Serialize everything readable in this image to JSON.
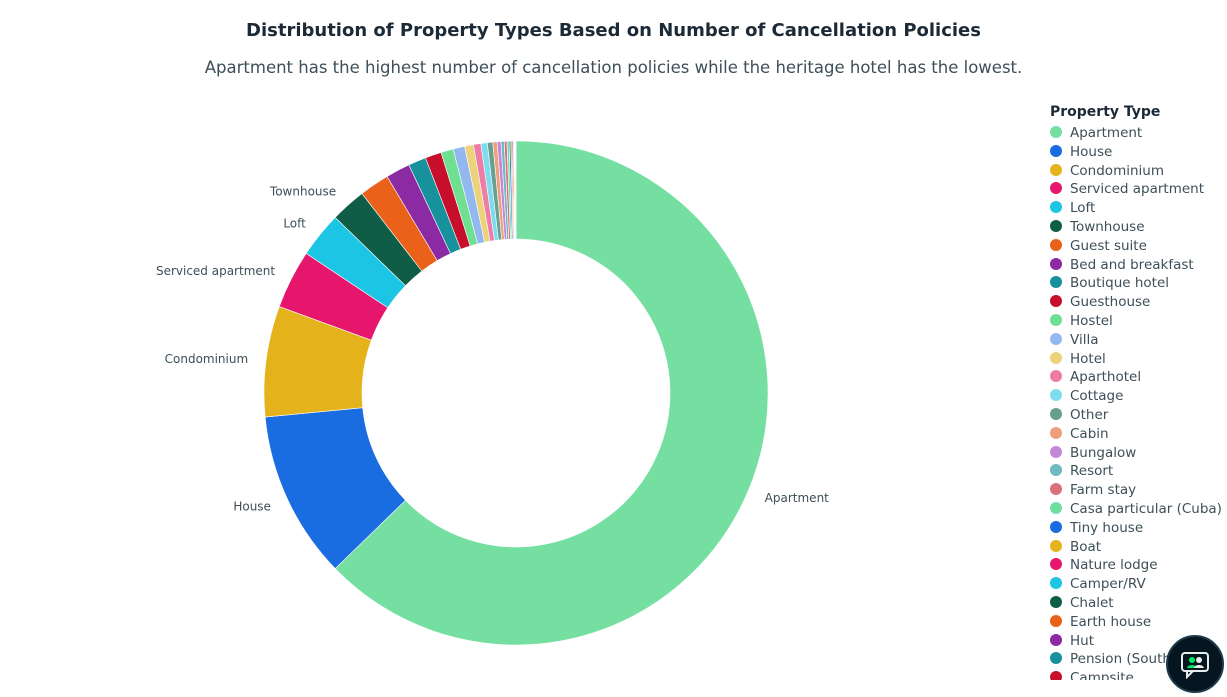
{
  "chart_data": {
    "type": "pie",
    "title": "Distribution of Property Types Based on Number of Cancellation Policies",
    "subtitle": "Apartment has the highest  number of cancellation policies while the heritage hotel has the lowest.",
    "legend_title": "Property Type",
    "legend_position": "right",
    "slice_order": "clockwise from top",
    "categories": [
      "Apartment",
      "House",
      "Condominium",
      "Serviced apartment",
      "Loft",
      "Townhouse",
      "Guest suite",
      "Bed and breakfast",
      "Boutique hotel",
      "Guesthouse",
      "Hostel",
      "Villa",
      "Hotel",
      "Aparthotel",
      "Cottage",
      "Other",
      "Cabin",
      "Bungalow",
      "Resort",
      "Farm stay",
      "Casa particular (Cuba)",
      "Tiny house",
      "Boat",
      "Nature lodge",
      "Camper/RV",
      "Chalet",
      "Earth house",
      "Hut",
      "Pension (South Korea)",
      "Campsite"
    ],
    "values": [
      3626,
      621,
      410,
      218,
      169,
      131,
      111,
      90,
      66,
      60,
      46,
      43,
      33,
      27,
      24,
      20,
      16,
      14,
      12,
      10,
      8,
      6,
      5,
      4,
      3,
      2,
      2,
      1,
      1,
      1
    ],
    "labeled_slices": [
      "Apartment",
      "House",
      "Condominium",
      "Serviced apartment",
      "Loft",
      "Townhouse"
    ],
    "colors": [
      "#75dfa1",
      "#1a6de0",
      "#e4b31b",
      "#e7166d",
      "#1bc5e3",
      "#0f5d46",
      "#ea621a",
      "#8b2aa3",
      "#17929d",
      "#c70f2b",
      "#6fdf92",
      "#93b8f0",
      "#ecd27a",
      "#ee7ca6",
      "#7fdcee",
      "#66a08e",
      "#ef9f7b",
      "#c389d6",
      "#6fb9c3",
      "#dc6f7c",
      "#6fdfa1",
      "#1a6de0",
      "#e4b31b",
      "#e7166d",
      "#1bc5e3",
      "#0f5d46",
      "#ea621a",
      "#8b2aa3",
      "#17929d",
      "#c70f2b"
    ]
  },
  "chat_button_icon": "chat-support-icon"
}
